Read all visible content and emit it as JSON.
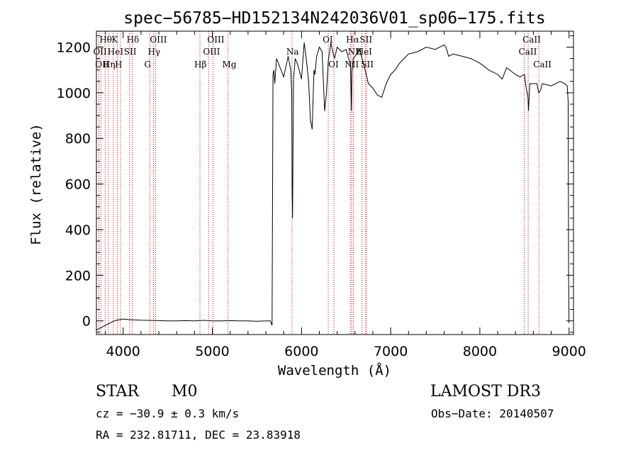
{
  "chart_data": {
    "type": "line",
    "title": "spec−56785−HD152134N242036V01_sp06−175.fits",
    "xlabel": "Wavelength (Å)",
    "ylabel": "Flux (relative)",
    "xlim": [
      3700,
      9050
    ],
    "ylim": [
      -60,
      1270
    ],
    "xticks": [
      4000,
      5000,
      6000,
      7000,
      8000,
      9000
    ],
    "yticks": [
      0,
      200,
      400,
      600,
      800,
      1000,
      1200
    ],
    "grid": false,
    "series": [
      {
        "x": [
          3700,
          3750,
          3800,
          3850,
          3900,
          3950,
          4000,
          4050,
          4100,
          4200,
          4300,
          4400,
          4500,
          4600,
          4700,
          4800,
          4900,
          5000,
          5100,
          5200,
          5300,
          5400,
          5500,
          5600,
          5650,
          5670,
          5680,
          5690,
          5700,
          5720,
          5750,
          5800,
          5850,
          5880,
          5890,
          5895,
          5900,
          5910,
          5930,
          5960,
          6000,
          6030,
          6050,
          6080,
          6100,
          6120,
          6140,
          6150,
          6170,
          6200,
          6230,
          6260,
          6280,
          6300,
          6330,
          6350,
          6370,
          6400,
          6450,
          6500,
          6550,
          6560,
          6565,
          6580,
          6600,
          6650,
          6700,
          6750,
          6800,
          6850,
          6900,
          6950,
          7000,
          7050,
          7100,
          7150,
          7200,
          7300,
          7400,
          7500,
          7600,
          7620,
          7650,
          7700,
          7800,
          7900,
          8000,
          8100,
          8200,
          8250,
          8300,
          8400,
          8450,
          8500,
          8520,
          8540,
          8545,
          8560,
          8600,
          8640,
          8660,
          8680,
          8700,
          8800,
          8900,
          8950,
          8980,
          8990,
          8995,
          9000
        ],
        "values": [
          -40,
          -30,
          -20,
          -10,
          0,
          5,
          8,
          6,
          5,
          3,
          2,
          1,
          0,
          0,
          1,
          0,
          2,
          0,
          0,
          1,
          0,
          0,
          -2,
          0,
          0,
          -20,
          1080,
          1100,
          1040,
          1150,
          1120,
          1070,
          1160,
          1100,
          1000,
          580,
          450,
          1060,
          1150,
          1120,
          1060,
          1220,
          1160,
          1050,
          880,
          840,
          1100,
          1080,
          1160,
          1200,
          1180,
          920,
          1000,
          1140,
          1220,
          1180,
          1150,
          1200,
          1180,
          1190,
          1120,
          920,
          1090,
          1150,
          1160,
          1190,
          1120,
          1040,
          1020,
          990,
          980,
          1040,
          1080,
          1100,
          1130,
          1150,
          1170,
          1180,
          1200,
          1190,
          1210,
          1200,
          1160,
          1170,
          1160,
          1150,
          1130,
          1100,
          1080,
          1060,
          1110,
          1080,
          1070,
          1080,
          1020,
          980,
          920,
          1040,
          1040,
          1040,
          1000,
          1010,
          1040,
          1030,
          1050,
          1040,
          1030,
          960,
          200,
          -10
        ]
      }
    ],
    "line_markers": [
      {
        "x": 3727,
        "label": "OII",
        "row": 1
      },
      {
        "x": 3750,
        "label": "OII",
        "row": 2
      },
      {
        "x": 3798,
        "label": "Hθ",
        "row": 0
      },
      {
        "x": 3835,
        "label": "Hη",
        "row": 2
      },
      {
        "x": 3889,
        "label": "HeI",
        "row": 1
      },
      {
        "x": 3934,
        "label": "K",
        "row": 0
      },
      {
        "x": 3970,
        "label": "H",
        "row": 2
      },
      {
        "x": 4072,
        "label": "SII",
        "row": 1
      },
      {
        "x": 4102,
        "label": "Hδ",
        "row": 0
      },
      {
        "x": 4300,
        "label": "G",
        "row": 2
      },
      {
        "x": 4340,
        "label": "Hγ",
        "row": 1
      },
      {
        "x": 4363,
        "label": "OIII",
        "row": 0
      },
      {
        "x": 4861,
        "label": "Hβ",
        "row": 2
      },
      {
        "x": 4959,
        "label": "OIII",
        "row": 1
      },
      {
        "x": 5007,
        "label": "OIII",
        "row": 0
      },
      {
        "x": 5175,
        "label": "Mg",
        "row": 2
      },
      {
        "x": 5893,
        "label": "Na",
        "row": 1
      },
      {
        "x": 6300,
        "label": "OI",
        "row": 0
      },
      {
        "x": 6364,
        "label": "OI",
        "row": 2
      },
      {
        "x": 6548,
        "label": "NII",
        "row": 2
      },
      {
        "x": 6563,
        "label": "Hα",
        "row": 0
      },
      {
        "x": 6583,
        "label": "NII",
        "row": 1
      },
      {
        "x": 6678,
        "label": "HeI",
        "row": 1
      },
      {
        "x": 6716,
        "label": "SII",
        "row": 0
      },
      {
        "x": 6731,
        "label": "SII",
        "row": 2
      },
      {
        "x": 8498,
        "label": "CaII",
        "row": 1
      },
      {
        "x": 8542,
        "label": "CaII",
        "row": 0
      },
      {
        "x": 8662,
        "label": "CaII",
        "row": 2
      }
    ]
  },
  "info": {
    "object_class": "STAR",
    "subclass": "M0",
    "survey": "LAMOST DR3",
    "cz": "cz = −30.9 ± 0.3 km/s",
    "obs_date": "Obs−Date: 20140507",
    "coords": "RA = 232.81711, DEC =  23.83918"
  },
  "colors": {
    "marker": "#cc0000",
    "spectrum": "#000000"
  }
}
